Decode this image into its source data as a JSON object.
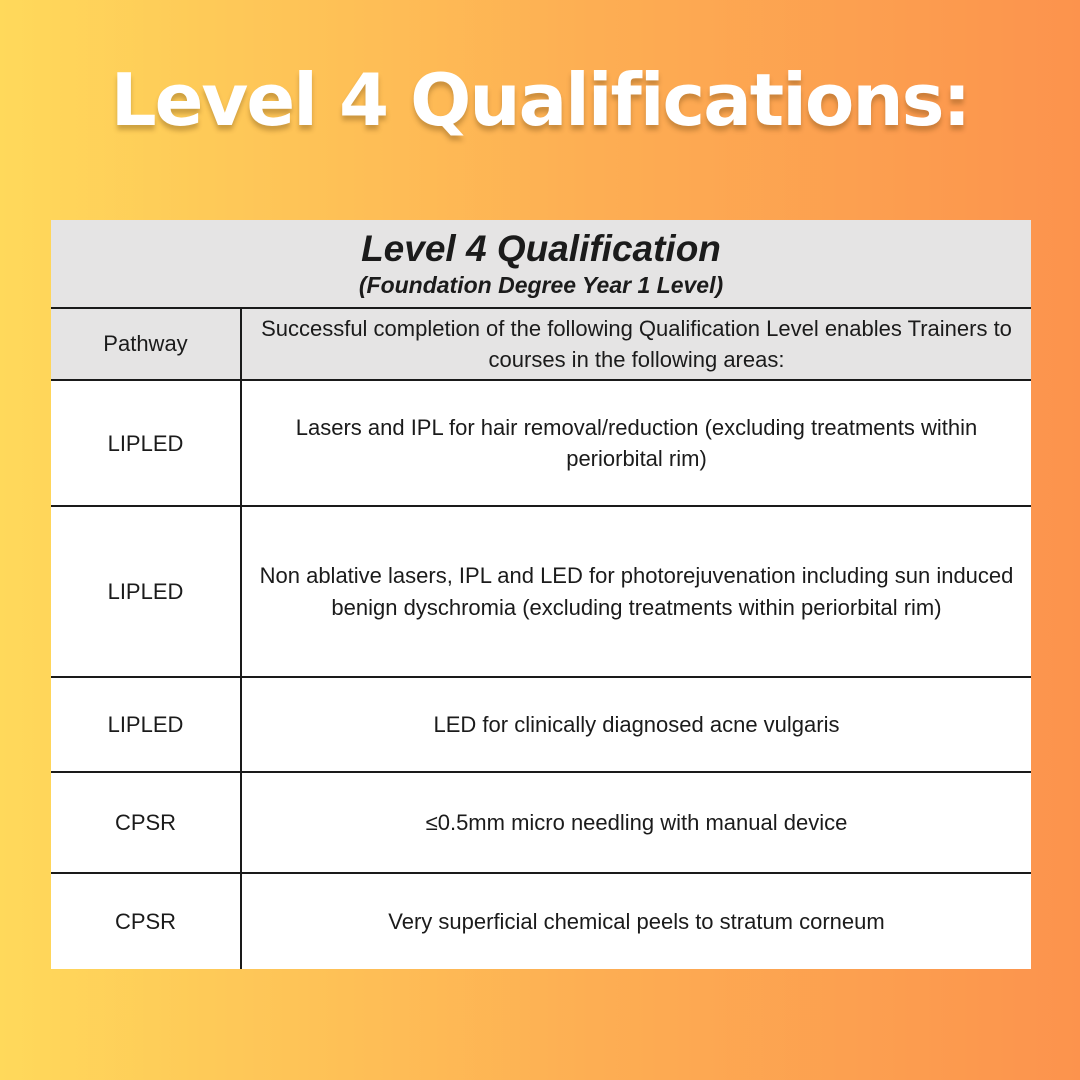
{
  "page": {
    "heading": "Level 4 Qualifications:"
  },
  "colors": {
    "background_gradient_start": "#FFD95B",
    "background_gradient_end": "#FC934D",
    "heading_text": "#FFFFFF",
    "table_header_bg": "#E5E4E4",
    "table_body_bg": "#FFFFFF",
    "table_border": "#1A1A1A",
    "table_text": "#1B1B1B"
  },
  "table": {
    "title": "Level 4 Qualification",
    "subtitle": "(Foundation Degree Year 1 Level)",
    "columns": {
      "pathway": "Pathway",
      "description": "Successful completion of the following Qualification Level enables Trainers to courses in the following areas:"
    },
    "rows": [
      {
        "pathway": "LIPLED",
        "description": "Lasers and IPL for hair removal/reduction (excluding treatments within periorbital rim)"
      },
      {
        "pathway": "LIPLED",
        "description": "Non ablative lasers, IPL and LED for photorejuvenation including sun induced benign dyschromia (excluding treatments within periorbital rim)"
      },
      {
        "pathway": "LIPLED",
        "description": "LED for clinically diagnosed acne vulgaris"
      },
      {
        "pathway": "CPSR",
        "description": "≤0.5mm micro needling with manual device"
      },
      {
        "pathway": "CPSR",
        "description": "Very superficial chemical peels to stratum corneum"
      }
    ]
  }
}
